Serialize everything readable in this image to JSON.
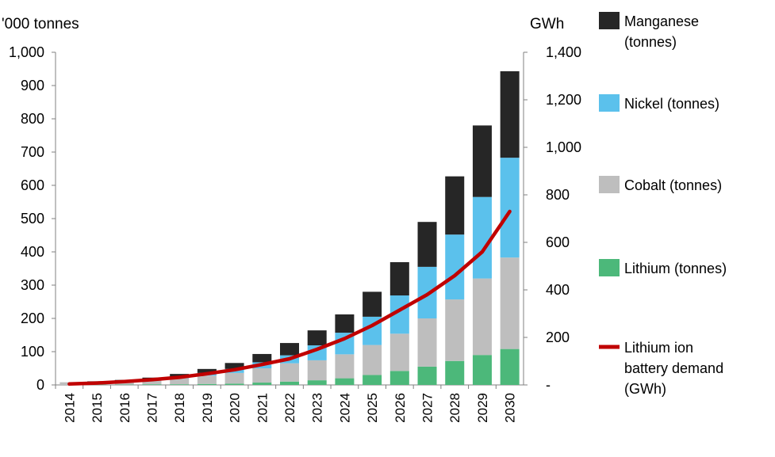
{
  "chart_data": {
    "type": "bar",
    "stacked": true,
    "left_axis_label": "'000 tonnes",
    "right_axis_label": "GWh",
    "categories": [
      "2014",
      "2015",
      "2016",
      "2017",
      "2018",
      "2019",
      "2020",
      "2021",
      "2022",
      "2023",
      "2024",
      "2025",
      "2026",
      "2027",
      "2028",
      "2029",
      "2030"
    ],
    "ylim": [
      0,
      1000
    ],
    "yticks": [
      "0",
      "100",
      "200",
      "300",
      "400",
      "500",
      "600",
      "700",
      "800",
      "900",
      "1,000"
    ],
    "y2lim": [
      0,
      1400
    ],
    "y2ticks": [
      "-",
      "200",
      "400",
      "600",
      "800",
      "1,000",
      "1,200",
      "1,400"
    ],
    "grid": false,
    "legend_position": "right",
    "series": [
      {
        "name": "Lithium (tonnes)",
        "color": "#4cb87a",
        "values": [
          0,
          1,
          1,
          2,
          2,
          3,
          4,
          7,
          10,
          14,
          20,
          30,
          42,
          55,
          72,
          90,
          108
        ]
      },
      {
        "name": "Cobalt (tonnes)",
        "color": "#bebebe",
        "values": [
          8,
          8,
          10,
          13,
          18,
          25,
          32,
          43,
          55,
          60,
          72,
          90,
          112,
          145,
          185,
          230,
          275
        ]
      },
      {
        "name": "Nickel (tonnes)",
        "color": "#5bc1ec",
        "values": [
          0,
          1,
          2,
          3,
          5,
          8,
          12,
          18,
          24,
          45,
          65,
          85,
          115,
          155,
          195,
          245,
          300
        ]
      },
      {
        "name": "Manganese (tonnes)",
        "color": "#262626",
        "values": [
          0,
          1,
          2,
          4,
          8,
          12,
          18,
          25,
          37,
          45,
          55,
          75,
          100,
          135,
          175,
          215,
          260
        ]
      }
    ],
    "line_series": {
      "name": "Lithium ion battery demand (GWh)",
      "color": "#c00000",
      "axis": "right",
      "values": [
        4,
        8,
        14,
        22,
        32,
        47,
        64,
        86,
        110,
        150,
        195,
        250,
        315,
        380,
        460,
        560,
        730
      ]
    },
    "legend": [
      {
        "lines": [
          "Manganese",
          "(tonnes)"
        ],
        "swatch": "box",
        "color": "#262626"
      },
      {
        "lines": [
          "Nickel (tonnes)"
        ],
        "swatch": "box",
        "color": "#5bc1ec"
      },
      {
        "lines": [
          "Cobalt (tonnes)"
        ],
        "swatch": "box",
        "color": "#bebebe"
      },
      {
        "lines": [
          "Lithium (tonnes)"
        ],
        "swatch": "box",
        "color": "#4cb87a"
      },
      {
        "lines": [
          "Lithium ion",
          "battery demand",
          "(GWh)"
        ],
        "swatch": "line",
        "color": "#c00000"
      }
    ]
  }
}
